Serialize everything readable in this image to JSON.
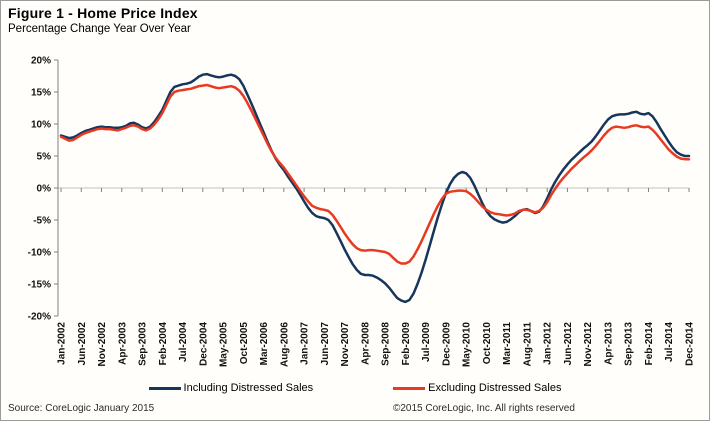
{
  "header": {
    "title": "Figure 1 - Home Price Index",
    "subtitle": "Percentage Change Year Over Year"
  },
  "footer": {
    "source": "Source: CoreLogic  January 2015",
    "copyright": "©2015 CoreLogic, Inc. All rights reserved"
  },
  "chart_data": {
    "type": "line",
    "title": "Figure 1 - Home Price Index",
    "subtitle": "Percentage Change Year Over Year",
    "xlabel": "",
    "ylabel": "Percentage Change Year Over Year",
    "ylim": [
      -20,
      20
    ],
    "y_tick_step": 5,
    "y_ticks": [
      "20%",
      "15%",
      "10%",
      "5%",
      "0%",
      "-5%",
      "-10%",
      "-15%",
      "-20%"
    ],
    "grid": "zero-line-only",
    "legend_position": "bottom",
    "x_start": "Jan-2002",
    "x_end": "Dec-2014",
    "x_tick_interval_months": 5,
    "x_tick_labels": [
      "Jan-2002",
      "Jun-2002",
      "Nov-2002",
      "Apr-2003",
      "Sep-2003",
      "Feb-2004",
      "Jul-2004",
      "Dec-2004",
      "May-2005",
      "Oct-2005",
      "Mar-2006",
      "Aug-2006",
      "Jan-2007",
      "Jun-2007",
      "Nov-2007",
      "Apr-2008",
      "Sep-2008",
      "Feb-2009",
      "Jul-2009",
      "Dec-2009",
      "May-2010",
      "Oct-2010",
      "Mar-2011",
      "Aug-2011",
      "Jan-2012",
      "Jun-2012",
      "Nov-2012",
      "Apr-2013",
      "Sep-2013",
      "Feb-2014",
      "Jul-2014",
      "Dec-2014"
    ],
    "colors": {
      "axis": "#808080",
      "gridline": "#c2c2c2"
    },
    "series": [
      {
        "name": "Including Distressed Sales",
        "color": "#16365c",
        "values": [
          8.2,
          8.0,
          7.8,
          7.9,
          8.2,
          8.6,
          8.9,
          9.1,
          9.3,
          9.5,
          9.6,
          9.5,
          9.5,
          9.4,
          9.4,
          9.5,
          9.7,
          10.1,
          10.2,
          9.9,
          9.5,
          9.3,
          9.6,
          10.3,
          11.2,
          12.2,
          13.6,
          15.0,
          15.8,
          16.0,
          16.2,
          16.3,
          16.5,
          16.9,
          17.4,
          17.7,
          17.8,
          17.6,
          17.4,
          17.3,
          17.4,
          17.6,
          17.7,
          17.5,
          17.0,
          16.0,
          14.6,
          13.2,
          11.7,
          10.2,
          8.7,
          7.2,
          5.8,
          4.6,
          3.6,
          2.8,
          1.8,
          0.9,
          0.0,
          -1.0,
          -2.1,
          -3.1,
          -3.9,
          -4.4,
          -4.6,
          -4.7,
          -5.0,
          -5.8,
          -7.0,
          -8.3,
          -9.6,
          -10.8,
          -11.9,
          -12.8,
          -13.4,
          -13.6,
          -13.6,
          -13.7,
          -14.0,
          -14.4,
          -14.9,
          -15.6,
          -16.4,
          -17.2,
          -17.6,
          -17.8,
          -17.5,
          -16.5,
          -15.0,
          -13.2,
          -11.2,
          -9.0,
          -6.8,
          -4.6,
          -2.6,
          -0.8,
          0.6,
          1.6,
          2.2,
          2.5,
          2.3,
          1.6,
          0.4,
          -1.0,
          -2.4,
          -3.6,
          -4.4,
          -4.9,
          -5.2,
          -5.4,
          -5.3,
          -4.9,
          -4.4,
          -3.8,
          -3.4,
          -3.3,
          -3.6,
          -3.9,
          -3.7,
          -2.9,
          -1.6,
          -0.2,
          1.0,
          2.0,
          2.9,
          3.7,
          4.4,
          5.0,
          5.6,
          6.2,
          6.7,
          7.3,
          8.1,
          9.0,
          9.9,
          10.7,
          11.2,
          11.4,
          11.5,
          11.5,
          11.6,
          11.8,
          11.9,
          11.6,
          11.5,
          11.7,
          11.2,
          10.3,
          9.2,
          8.2,
          7.2,
          6.3,
          5.6,
          5.2,
          5.0,
          5.0
        ]
      },
      {
        "name": "Excluding Distressed Sales",
        "color": "#e83a21",
        "values": [
          8.0,
          7.7,
          7.4,
          7.5,
          7.9,
          8.3,
          8.6,
          8.8,
          9.0,
          9.2,
          9.3,
          9.2,
          9.2,
          9.1,
          9.0,
          9.2,
          9.4,
          9.7,
          9.8,
          9.6,
          9.2,
          9.0,
          9.3,
          9.9,
          10.7,
          11.7,
          13.0,
          14.3,
          15.0,
          15.2,
          15.3,
          15.4,
          15.5,
          15.7,
          15.9,
          16.0,
          16.1,
          15.9,
          15.7,
          15.6,
          15.7,
          15.8,
          15.9,
          15.7,
          15.2,
          14.4,
          13.3,
          12.1,
          10.8,
          9.5,
          8.2,
          6.9,
          5.7,
          4.7,
          3.9,
          3.2,
          2.3,
          1.4,
          0.5,
          -0.4,
          -1.3,
          -2.1,
          -2.8,
          -3.1,
          -3.3,
          -3.4,
          -3.6,
          -4.2,
          -5.1,
          -6.1,
          -7.1,
          -8.0,
          -8.8,
          -9.4,
          -9.7,
          -9.8,
          -9.7,
          -9.7,
          -9.8,
          -9.9,
          -10.0,
          -10.3,
          -10.9,
          -11.5,
          -11.8,
          -11.8,
          -11.5,
          -10.7,
          -9.6,
          -8.3,
          -6.9,
          -5.5,
          -4.1,
          -2.8,
          -1.7,
          -0.9,
          -0.6,
          -0.5,
          -0.4,
          -0.4,
          -0.5,
          -0.9,
          -1.5,
          -2.2,
          -2.9,
          -3.4,
          -3.8,
          -4.0,
          -4.1,
          -4.2,
          -4.3,
          -4.2,
          -4.0,
          -3.6,
          -3.4,
          -3.4,
          -3.6,
          -3.8,
          -3.6,
          -3.1,
          -2.2,
          -1.1,
          -0.1,
          0.8,
          1.6,
          2.3,
          3.0,
          3.6,
          4.2,
          4.8,
          5.3,
          5.9,
          6.6,
          7.4,
          8.2,
          8.9,
          9.4,
          9.6,
          9.5,
          9.4,
          9.5,
          9.7,
          9.8,
          9.6,
          9.5,
          9.6,
          9.1,
          8.4,
          7.6,
          6.8,
          6.0,
          5.4,
          4.9,
          4.6,
          4.5,
          4.5
        ]
      }
    ]
  }
}
